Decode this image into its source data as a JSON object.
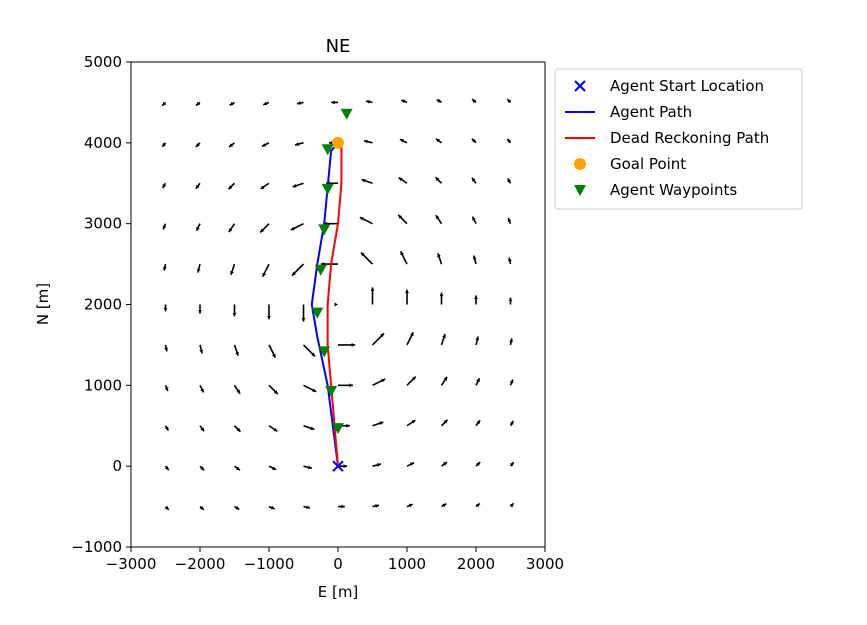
{
  "chart_data": {
    "type": "line",
    "title": "NE",
    "xlabel": "E [m]",
    "ylabel": "N [m]",
    "xlim": [
      -3000,
      3000
    ],
    "ylim": [
      -1000,
      5000
    ],
    "xticks": [
      -3000,
      -2000,
      -1000,
      0,
      1000,
      2000,
      3000
    ],
    "yticks": [
      -1000,
      0,
      1000,
      2000,
      3000,
      4000,
      5000
    ],
    "xtick_labels": [
      "−3000",
      "−2000",
      "−1000",
      "0",
      "1000",
      "2000",
      "3000"
    ],
    "ytick_labels": [
      "−1000",
      "0",
      "1000",
      "2000",
      "3000",
      "4000",
      "5000"
    ],
    "grid": false,
    "legend_position": "outside-right-top",
    "series": [
      {
        "name": "Agent Start Location",
        "kind": "marker",
        "marker": "x",
        "color": "#0000ff",
        "x": [
          0
        ],
        "y": [
          0
        ]
      },
      {
        "name": "Agent Path",
        "kind": "line",
        "color": "#0000ff",
        "x": [
          0,
          -150,
          -300,
          -380,
          -300,
          -200,
          -100,
          0
        ],
        "y": [
          0,
          1000,
          1600,
          2000,
          2500,
          3000,
          3900,
          4000
        ]
      },
      {
        "name": "Dead Reckoning Path",
        "kind": "line",
        "color": "#ff0000",
        "x": [
          0,
          -50,
          -150,
          -150,
          -100,
          0,
          50,
          50,
          0
        ],
        "y": [
          0,
          500,
          1500,
          2000,
          2500,
          3000,
          3500,
          3950,
          4000
        ]
      },
      {
        "name": "Goal Point",
        "kind": "marker",
        "marker": "o",
        "color": "#ffa500",
        "x": [
          0
        ],
        "y": [
          4000
        ]
      },
      {
        "name": "Agent Waypoints",
        "kind": "marker",
        "marker": "v",
        "color": "#008000",
        "x": [
          0,
          -100,
          -200,
          -300,
          -250,
          -200,
          -150,
          -150,
          125
        ],
        "y": [
          470,
          930,
          1420,
          1900,
          2430,
          2930,
          3430,
          3920,
          4360
        ]
      }
    ],
    "vector_field": {
      "grid_x": [
        -2500,
        -2000,
        -1500,
        -1000,
        -500,
        0,
        500,
        1000,
        1500,
        2000,
        2500
      ],
      "grid_y": [
        -500,
        0,
        500,
        1000,
        1500,
        2000,
        2500,
        3000,
        3500,
        4000,
        4500
      ],
      "center": [
        0,
        2000
      ],
      "color": "#000000"
    }
  }
}
